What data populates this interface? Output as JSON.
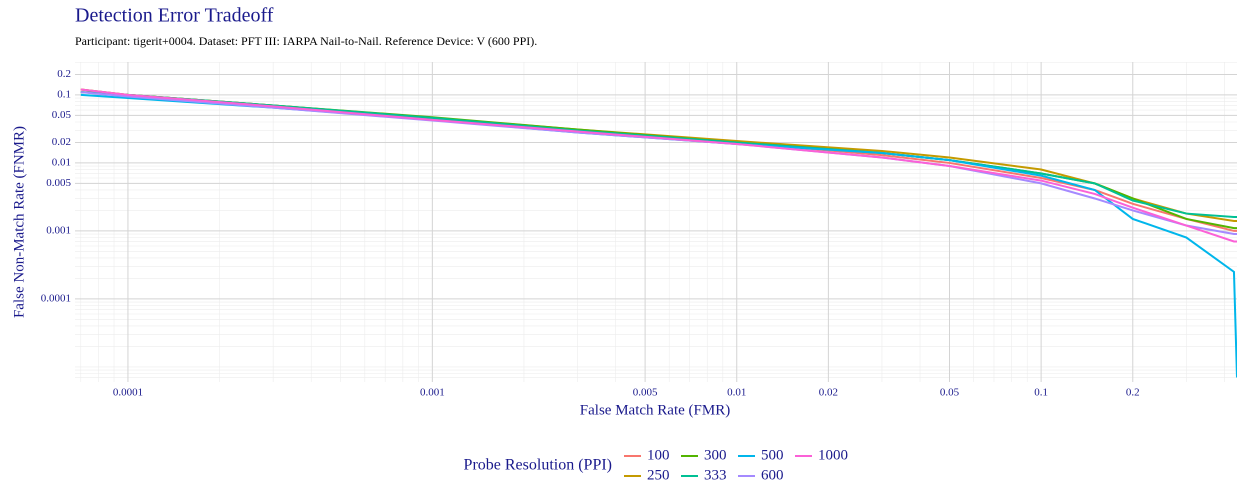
{
  "chart_data": {
    "type": "line",
    "title": "Detection Error Tradeoff",
    "subtitle": "Participant: tigerit+0004. Dataset: PFT III: IARPA Nail-to-Nail. Reference Device: V (600 PPI).",
    "x_label": "False Match Rate (FMR)",
    "y_label": "False Non-Match Rate (FNMR)",
    "legend_title": "Probe Resolution (PPI)",
    "legend_position": "bottom",
    "xscale": "log",
    "yscale": "log",
    "grid": true,
    "xlim": [
      6.7e-05,
      0.44
    ],
    "ylim": [
      6e-06,
      0.305
    ],
    "xticks": [
      0.0001,
      0.001,
      0.005,
      0.01,
      0.02,
      0.05,
      0.1,
      0.2
    ],
    "yticks": [
      0.2,
      0.1,
      0.05,
      0.02,
      0.01,
      0.005,
      0.001,
      0.0001
    ],
    "x": [
      7e-05,
      0.0001,
      0.0003,
      0.001,
      0.003,
      0.01,
      0.03,
      0.05,
      0.1,
      0.15,
      0.2,
      0.3,
      0.43,
      0.44
    ],
    "series": [
      {
        "name": "100",
        "color": "#F8766D",
        "values": [
          0.12,
          0.1,
          0.07,
          0.045,
          0.03,
          0.02,
          0.013,
          0.01,
          0.006,
          0.004,
          0.0025,
          0.0015,
          0.001,
          0.001
        ]
      },
      {
        "name": "250",
        "color": "#C49A00",
        "values": [
          0.12,
          0.1,
          0.07,
          0.046,
          0.031,
          0.021,
          0.015,
          0.012,
          0.008,
          0.005,
          0.003,
          0.0018,
          0.0014,
          0.0014
        ]
      },
      {
        "name": "300",
        "color": "#53B400",
        "values": [
          0.11,
          0.1,
          0.07,
          0.047,
          0.031,
          0.02,
          0.014,
          0.011,
          0.007,
          0.005,
          0.003,
          0.0015,
          0.0011,
          0.0011
        ]
      },
      {
        "name": "333",
        "color": "#00C094",
        "values": [
          0.11,
          0.1,
          0.07,
          0.046,
          0.03,
          0.02,
          0.014,
          0.011,
          0.007,
          0.005,
          0.0028,
          0.0018,
          0.0016,
          0.0016
        ]
      },
      {
        "name": "500",
        "color": "#00B6EB",
        "values": [
          0.1,
          0.09,
          0.065,
          0.043,
          0.028,
          0.019,
          0.014,
          0.011,
          0.0065,
          0.004,
          0.0015,
          0.0008,
          0.00025,
          7e-06
        ]
      },
      {
        "name": "600",
        "color": "#A58AFF",
        "values": [
          0.11,
          0.095,
          0.065,
          0.042,
          0.028,
          0.019,
          0.012,
          0.009,
          0.005,
          0.003,
          0.002,
          0.0012,
          0.0009,
          0.0009
        ]
      },
      {
        "name": "1000",
        "color": "#FB61D7",
        "values": [
          0.12,
          0.1,
          0.068,
          0.043,
          0.029,
          0.019,
          0.012,
          0.009,
          0.0055,
          0.0035,
          0.0022,
          0.0012,
          0.0007,
          0.0007
        ]
      }
    ]
  }
}
